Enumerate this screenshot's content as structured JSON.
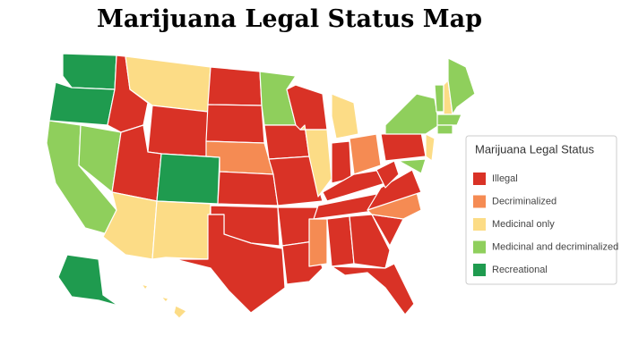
{
  "title": "Marijuana Legal Status Map",
  "legend": {
    "title": "Marijuana Legal Status",
    "items": [
      {
        "label": "Illegal",
        "color": "#d93226"
      },
      {
        "label": "Decriminalized",
        "color": "#f58b53"
      },
      {
        "label": "Medicinal only",
        "color": "#fcdc86"
      },
      {
        "label": "Medicinal and decriminalized",
        "color": "#8fcf5c"
      },
      {
        "label": "Recreational",
        "color": "#1f9b4f"
      }
    ]
  }
}
